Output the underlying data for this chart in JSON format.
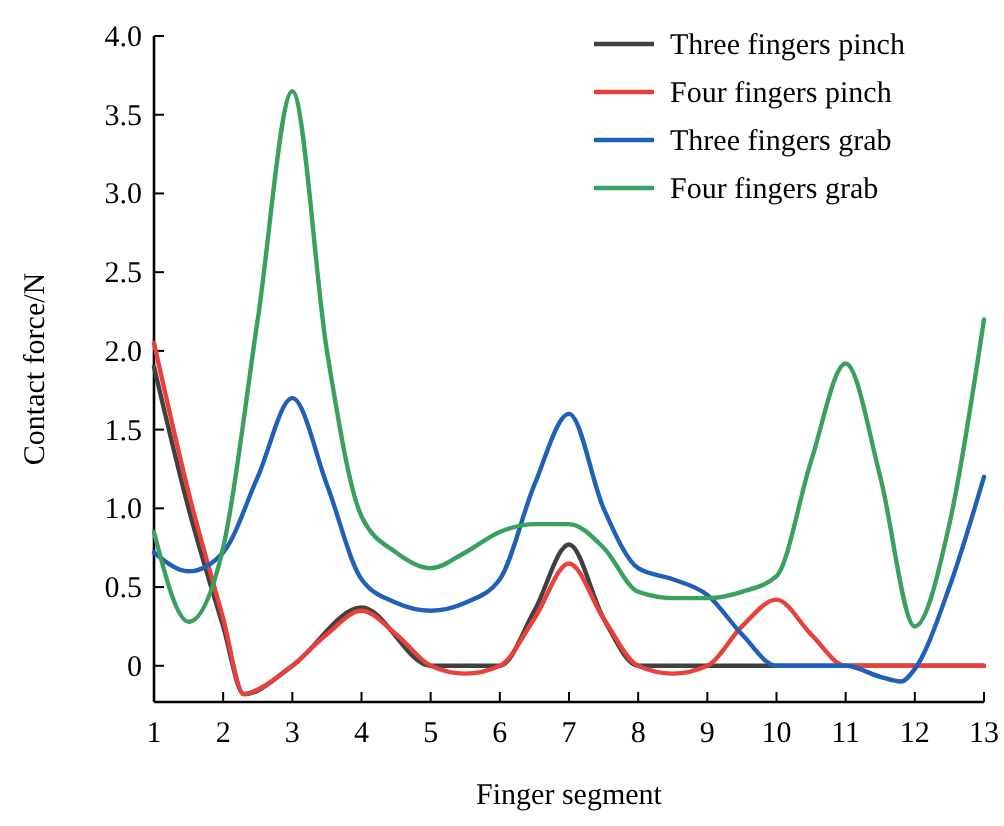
{
  "chart_data": {
    "type": "line",
    "xlabel": "Finger segment",
    "ylabel": "Contact force/N",
    "xlim": [
      1,
      13
    ],
    "xticks": [
      1,
      2,
      3,
      4,
      5,
      6,
      7,
      8,
      9,
      10,
      11,
      12,
      13
    ],
    "ylim": [
      -0.23,
      4.0
    ],
    "yticks": [
      {
        "value": 0,
        "label": "0"
      },
      0.5,
      {
        "value": 1,
        "label": "1.0"
      },
      1.5,
      {
        "value": 2,
        "label": "2.0"
      },
      2.5,
      {
        "value": 3,
        "label": "3.0"
      },
      3.5,
      {
        "value": 4,
        "label": "4.0"
      }
    ],
    "grid": false,
    "legend": "top right",
    "marker": "none",
    "line_style": "solid",
    "series": [
      {
        "name": "Three fingers pinch",
        "color": "#404040",
        "x": [
          1,
          1.5,
          2,
          2.3,
          2.5,
          3,
          3.5,
          4,
          4.5,
          5,
          5.5,
          6,
          6.5,
          7,
          7.5,
          8,
          9,
          10,
          11,
          12,
          13
        ],
        "values": [
          1.9,
          1.0,
          0.25,
          -0.18,
          null,
          0,
          null,
          0.37,
          null,
          0,
          null,
          0,
          0.35,
          0.77,
          0.3,
          0,
          0,
          0,
          0,
          0,
          0
        ]
      },
      {
        "name": "Four fingers pinch",
        "color": "#e8413c",
        "x": [
          1,
          1.5,
          2,
          2.3,
          2.5,
          3,
          3.5,
          4,
          4.5,
          5,
          5.5,
          6,
          6.5,
          7,
          7.5,
          8,
          8.5,
          9,
          9.5,
          10,
          10.5,
          11,
          12,
          13
        ],
        "values": [
          2.05,
          1.1,
          0.3,
          -0.18,
          -0.15,
          0,
          0.2,
          0.35,
          0.2,
          0,
          -0.05,
          0,
          0.3,
          0.65,
          0.3,
          0,
          -0.05,
          0,
          0.25,
          0.42,
          0.2,
          0,
          0,
          0
        ]
      },
      {
        "name": "Three fingers grab",
        "color": "#2060b8",
        "x": [
          1,
          1.5,
          2,
          2.5,
          3,
          3.5,
          4,
          4.5,
          5,
          5.5,
          6,
          6.5,
          7,
          7.5,
          8,
          8.5,
          9,
          9.5,
          10,
          10.5,
          11,
          11.5,
          11.8,
          12,
          12.5,
          13
        ],
        "values": [
          0.72,
          0.6,
          0.72,
          1.2,
          1.7,
          1.15,
          0.55,
          0.4,
          0.35,
          0.4,
          0.55,
          1.15,
          1.6,
          1.0,
          0.62,
          0.55,
          0.45,
          0.2,
          0,
          0,
          0,
          -0.07,
          -0.1,
          -0.02,
          0.5,
          1.2
        ]
      },
      {
        "name": "Four fingers grab",
        "color": "#3aa060",
        "x": [
          1,
          1.5,
          2,
          2.5,
          3,
          3.5,
          4,
          4.5,
          5,
          5.5,
          6,
          6.5,
          7,
          7.5,
          8,
          8.5,
          9,
          9.5,
          10,
          10.5,
          11,
          11.5,
          12,
          12.5,
          13
        ],
        "values": [
          0.85,
          0.28,
          0.75,
          2.2,
          3.65,
          2.0,
          0.95,
          0.72,
          0.62,
          0.72,
          0.85,
          0.9,
          0.9,
          0.75,
          0.47,
          0.43,
          0.43,
          0.47,
          0.57,
          1.3,
          1.92,
          1.2,
          0.25,
          0.9,
          2.2
        ]
      }
    ]
  }
}
